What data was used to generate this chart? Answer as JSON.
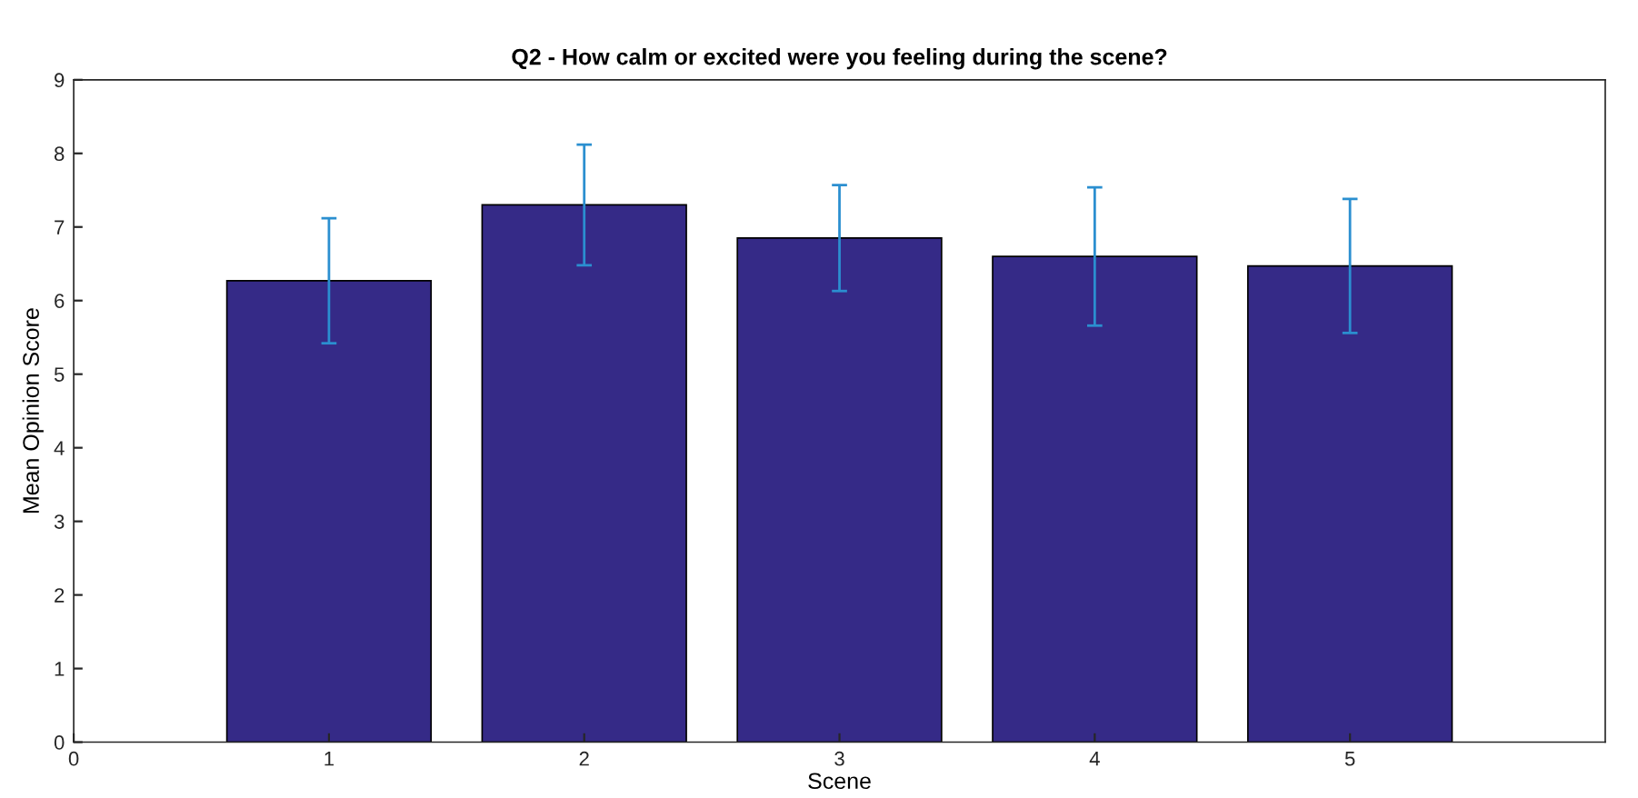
{
  "chart_data": {
    "type": "bar",
    "title": "Q2 - How calm or excited were you feeling during the scene?",
    "xlabel": "Scene",
    "ylabel": "Mean Opinion Score",
    "x": [
      1,
      2,
      3,
      4,
      5
    ],
    "series": [
      {
        "color": "#352a87",
        "values": [
          6.27,
          7.3,
          6.85,
          6.6,
          6.47
        ],
        "errors": [
          0.85,
          0.82,
          0.72,
          0.94,
          0.91
        ]
      }
    ],
    "xlim": [
      0,
      6
    ],
    "xticks": [
      0,
      1,
      2,
      3,
      4,
      5
    ],
    "ylim": [
      0,
      9
    ],
    "yticks": [
      0,
      1,
      2,
      3,
      4,
      5,
      6,
      7,
      8,
      9
    ],
    "grid": false,
    "legend": false
  }
}
